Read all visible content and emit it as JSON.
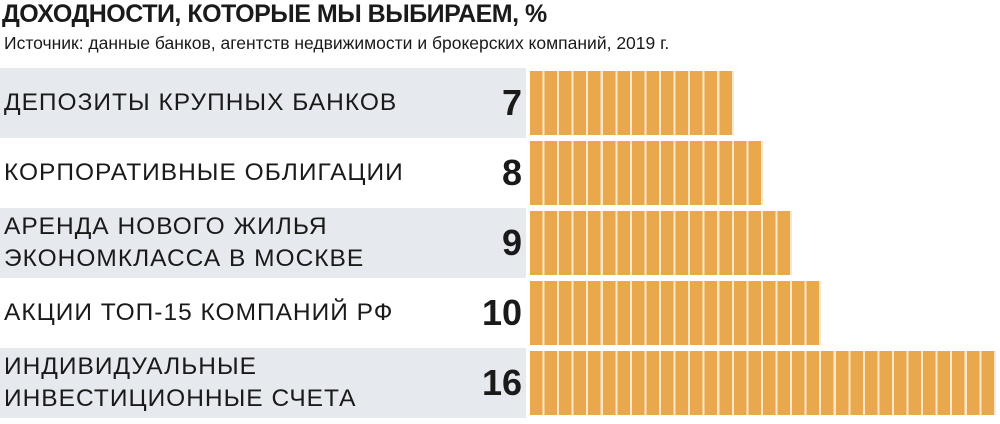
{
  "chart_data": {
    "type": "bar",
    "orientation": "horizontal",
    "title": "ДОХОДНОСТИ, КОТОРЫЕ МЫ ВЫБИРАЕМ, %",
    "subtitle": "Источник: данные банков, агентств недвижимости и брокерских компаний, 2019 г.",
    "categories": [
      "ДЕПОЗИТЫ КРУПНЫХ БАНКОВ",
      "КОРПОРАТИВНЫЕ ОБЛИГАЦИИ",
      "АРЕНДА НОВОГО ЖИЛЬЯ\nЭКОНОМКЛАССА В МОСКВЕ",
      "АКЦИИ ТОП-15 КОМПАНИЙ РФ",
      "ИНДИВИДУАЛЬНЫЕ\nИНВЕСТИЦИОННЫЕ СЧЕТА"
    ],
    "values": [
      7,
      8,
      9,
      10,
      16
    ],
    "color": "#eaa84c",
    "row_color": "#e6eaee"
  }
}
